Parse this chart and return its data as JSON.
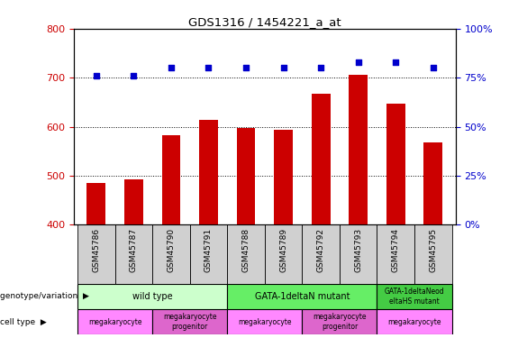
{
  "title": "GDS1316 / 1454221_a_at",
  "samples": [
    "GSM45786",
    "GSM45787",
    "GSM45790",
    "GSM45791",
    "GSM45788",
    "GSM45789",
    "GSM45792",
    "GSM45793",
    "GSM45794",
    "GSM45795"
  ],
  "bar_values": [
    486,
    492,
    582,
    614,
    597,
    594,
    668,
    706,
    648,
    568
  ],
  "percentile_values": [
    76,
    76,
    80,
    80,
    80,
    80,
    80,
    83,
    83,
    80
  ],
  "bar_color": "#cc0000",
  "dot_color": "#0000cc",
  "ylim_left": [
    400,
    800
  ],
  "ylim_right": [
    0,
    100
  ],
  "yticks_left": [
    400,
    500,
    600,
    700,
    800
  ],
  "yticks_right": [
    0,
    25,
    50,
    75,
    100
  ],
  "hlines": [
    500,
    600,
    700
  ],
  "genotype_groups": [
    {
      "label": "wild type",
      "start": 0,
      "end": 4,
      "color": "#ccffcc"
    },
    {
      "label": "GATA-1deltaN mutant",
      "start": 4,
      "end": 8,
      "color": "#66ee66"
    },
    {
      "label": "GATA-1deltaNeod\neltaHS mutant",
      "start": 8,
      "end": 10,
      "color": "#44cc44"
    }
  ],
  "cell_type_groups": [
    {
      "label": "megakaryocyte",
      "start": 0,
      "end": 2,
      "color": "#ff88ff"
    },
    {
      "label": "megakaryocyte\nprogenitor",
      "start": 2,
      "end": 4,
      "color": "#dd66cc"
    },
    {
      "label": "megakaryocyte",
      "start": 4,
      "end": 6,
      "color": "#ff88ff"
    },
    {
      "label": "megakaryocyte\nprogenitor",
      "start": 6,
      "end": 8,
      "color": "#dd66cc"
    },
    {
      "label": "megakaryocyte",
      "start": 8,
      "end": 10,
      "color": "#ff88ff"
    }
  ],
  "legend_count_color": "#cc0000",
  "legend_percentile_color": "#0000cc",
  "left_label_color": "#000000",
  "xticklabel_bg": "#d0d0d0",
  "xticklabel_fontsize": 6.5,
  "bar_width": 0.5
}
